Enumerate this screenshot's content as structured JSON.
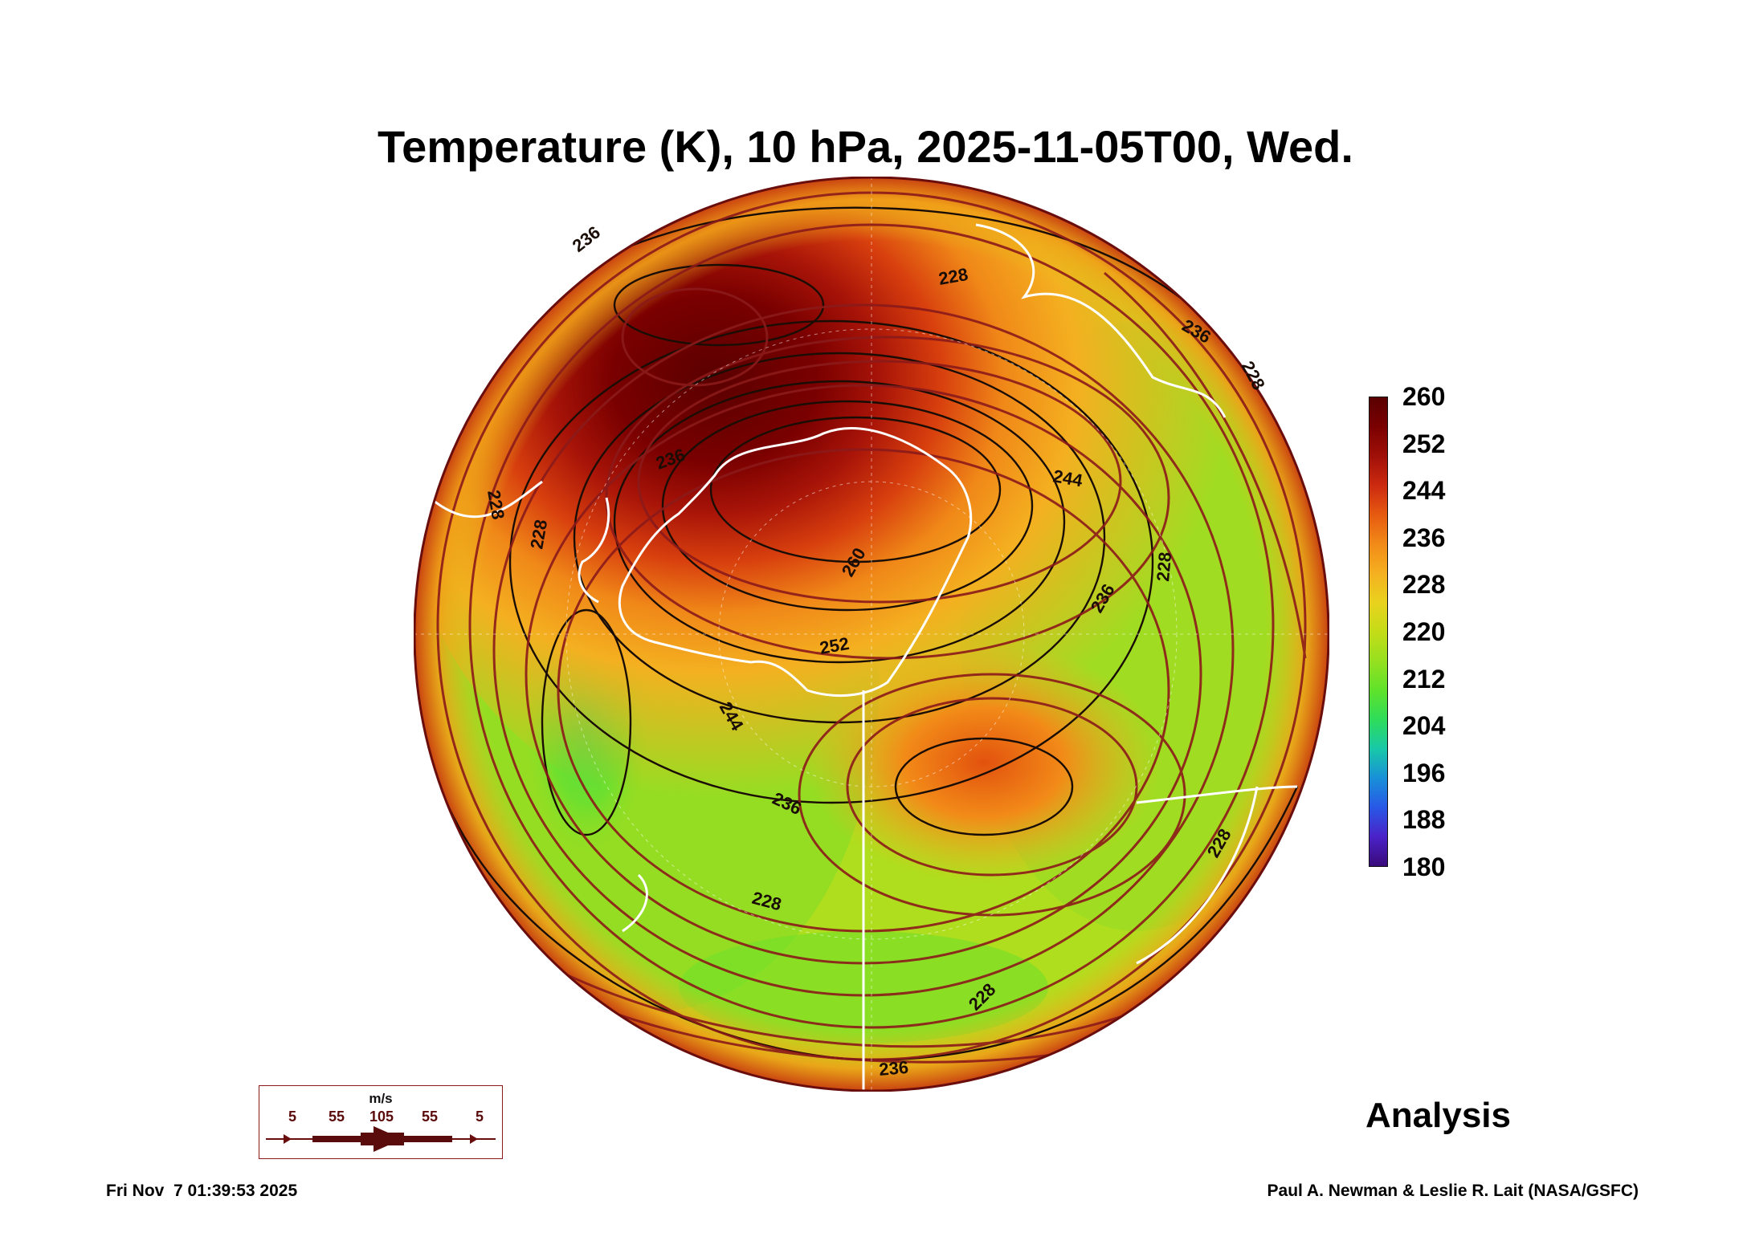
{
  "title": "Temperature (K), 10 hPa, 2025-11-05T00, Wed.",
  "colorbar": {
    "labels": [
      "260",
      "252",
      "244",
      "236",
      "228",
      "220",
      "212",
      "204",
      "196",
      "188",
      "180"
    ],
    "colors": [
      "#5a0000",
      "#7a0000",
      "#a01008",
      "#cc2a10",
      "#e65a10",
      "#f28a18",
      "#f5b020",
      "#e9d21e",
      "#c4dc18",
      "#96e020",
      "#5fe22a",
      "#2edc5a",
      "#18c8a8",
      "#1890d8",
      "#2858e6",
      "#4a22c8",
      "#3a0a7a"
    ]
  },
  "contour_labels": [
    "236",
    "228",
    "228",
    "236",
    "228",
    "244",
    "260",
    "252",
    "244",
    "236",
    "228",
    "236",
    "228",
    "236",
    "228",
    "228",
    "228",
    "236"
  ],
  "legend": {
    "unit": "m/s",
    "values": [
      "5",
      "55",
      "105",
      "55",
      "5"
    ]
  },
  "analysis_label": "Analysis",
  "timestamp": "Fri Nov  7 01:39:53 2025",
  "credit": "Paul A. Newman & Leslie R. Lait (NASA/GSFC)"
}
